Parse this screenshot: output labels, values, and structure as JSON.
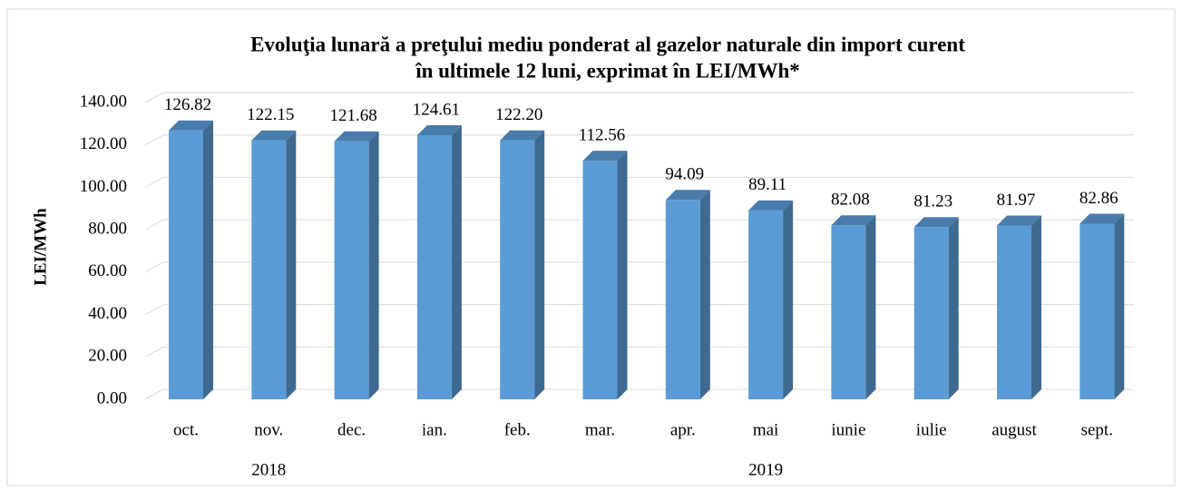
{
  "chart_data": {
    "type": "bar3d",
    "title": [
      "Evoluţia lunară a preţului mediu ponderat al gazelor naturale din import curent",
      "în ultimele 12 luni, exprimat în LEI/MWh*"
    ],
    "y_label": "LEI/MWh",
    "categories": [
      "oct.",
      "nov.",
      "dec.",
      "ian.",
      "feb.",
      "mar.",
      "apr.",
      "mai",
      "iunie",
      "iulie",
      "august",
      "sept."
    ],
    "group_labels": [
      "2018",
      "2019"
    ],
    "values": [
      126.82,
      122.15,
      121.68,
      124.61,
      122.2,
      112.56,
      94.09,
      89.11,
      82.08,
      81.23,
      81.97,
      82.86
    ],
    "value_labels": [
      "126.82",
      "122.15",
      "121.68",
      "124.61",
      "122.20",
      "112.56",
      "94.09",
      "89.11",
      "82.08",
      "81.23",
      "81.97",
      "82.86"
    ],
    "color": "#5b9bd5",
    "ylim": [
      0,
      140
    ],
    "yticks": [
      {
        "value": 0,
        "label": "0.00"
      },
      {
        "value": 20,
        "label": "20.00"
      },
      {
        "value": 40,
        "label": "40.00"
      },
      {
        "value": 60,
        "label": "60.00"
      },
      {
        "value": 80,
        "label": "80.00"
      },
      {
        "value": 100,
        "label": "100.00"
      },
      {
        "value": 120,
        "label": "120.00"
      },
      {
        "value": 140,
        "label": "140.00"
      }
    ],
    "grid": true
  }
}
